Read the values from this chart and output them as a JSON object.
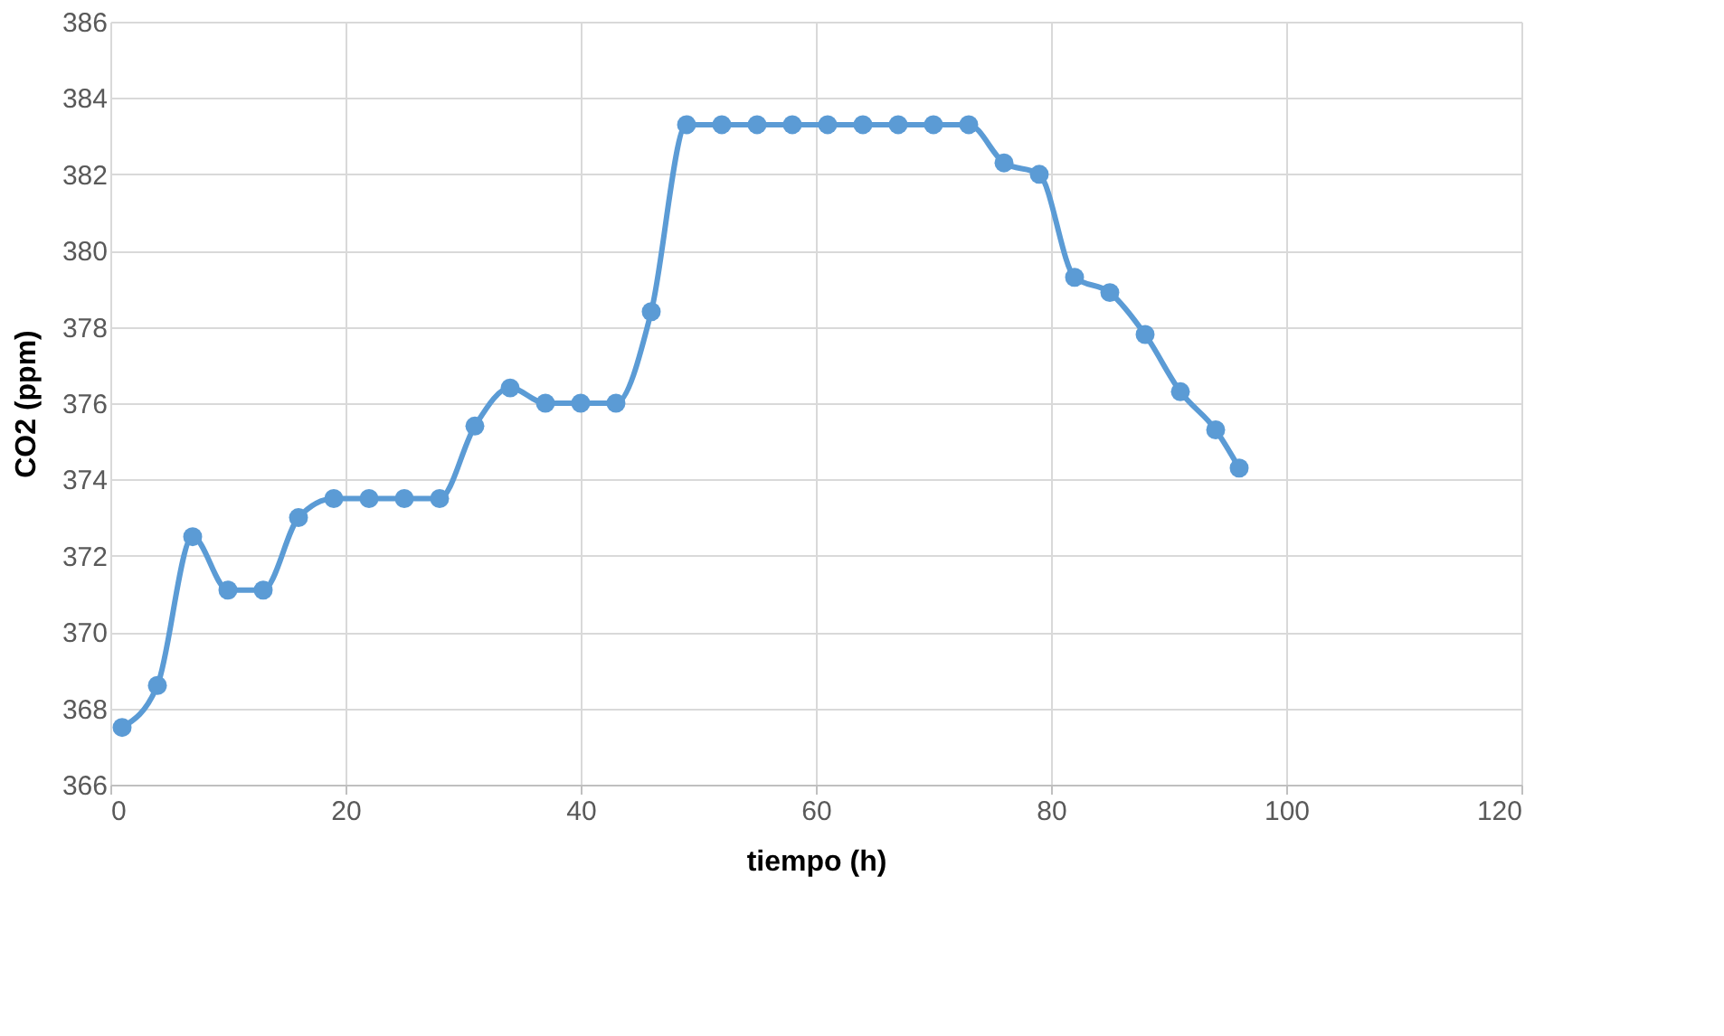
{
  "chart_data": {
    "type": "line",
    "xlabel": "tiempo (h)",
    "ylabel": "CO2 (ppm)",
    "x": [
      1,
      4,
      7,
      10,
      13,
      16,
      19,
      22,
      25,
      28,
      31,
      34,
      37,
      40,
      43,
      46,
      49,
      52,
      55,
      58,
      61,
      64,
      67,
      70,
      73,
      76,
      79,
      82,
      85,
      88,
      91,
      94,
      96
    ],
    "series": [
      {
        "color": "#5b9bd5",
        "values": [
          367.5,
          368.6,
          372.5,
          371.1,
          371.1,
          373.0,
          373.5,
          373.5,
          373.5,
          373.5,
          375.4,
          376.4,
          376.0,
          376.0,
          376.0,
          378.4,
          383.3,
          383.3,
          383.3,
          383.3,
          383.3,
          383.3,
          383.3,
          383.3,
          383.3,
          382.3,
          382.0,
          379.3,
          378.9,
          377.8,
          376.3,
          375.3,
          374.3
        ]
      }
    ],
    "xlim": [
      0,
      120
    ],
    "xticks": [
      0,
      20,
      40,
      60,
      80,
      100,
      120
    ],
    "ylim": [
      366,
      386
    ],
    "yticks": [
      366,
      368,
      370,
      372,
      374,
      376,
      378,
      380,
      382,
      384,
      386
    ],
    "grid": true,
    "marker": "circle",
    "line_style": "solid",
    "legend": false
  }
}
